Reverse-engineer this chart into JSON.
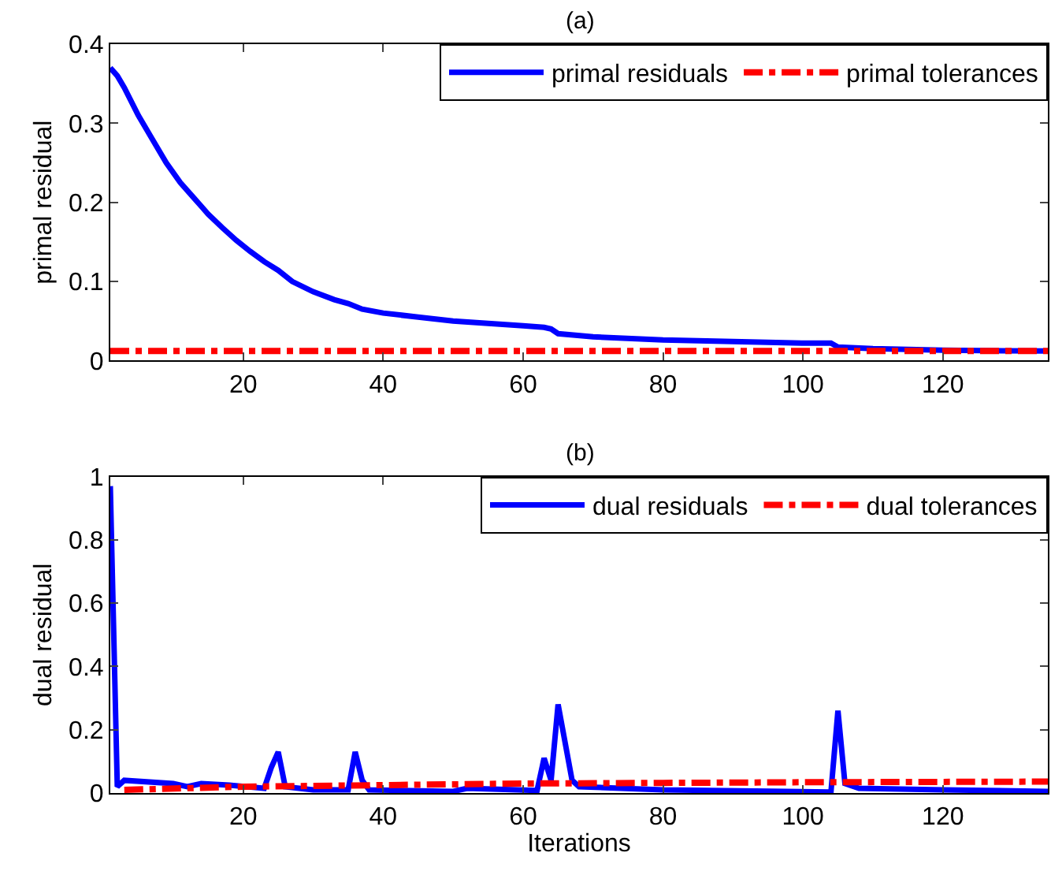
{
  "chart_data": [
    {
      "type": "line",
      "title": "(a)",
      "ylabel": "primal residual",
      "xlim": [
        1,
        135
      ],
      "xticks": [
        20,
        40,
        60,
        80,
        100,
        120
      ],
      "ylim": [
        0,
        0.4
      ],
      "yticks": [
        0,
        0.1,
        0.2,
        0.3,
        0.4
      ],
      "legend": "top right",
      "marker": "none",
      "series": [
        {
          "name": "primal residuals",
          "color": "#0000ff",
          "line_style": "solid",
          "x": [
            1,
            2,
            3,
            5,
            7,
            9,
            11,
            13,
            15,
            17,
            19,
            21,
            23,
            25,
            27,
            30,
            33,
            35,
            37,
            40,
            45,
            50,
            55,
            60,
            63,
            64,
            65,
            70,
            80,
            90,
            100,
            104,
            105,
            110,
            120,
            135
          ],
          "values": [
            0.37,
            0.36,
            0.345,
            0.31,
            0.28,
            0.25,
            0.225,
            0.205,
            0.185,
            0.168,
            0.152,
            0.138,
            0.125,
            0.114,
            0.1,
            0.087,
            0.077,
            0.072,
            0.065,
            0.06,
            0.055,
            0.05,
            0.047,
            0.044,
            0.042,
            0.04,
            0.034,
            0.03,
            0.026,
            0.024,
            0.022,
            0.022,
            0.017,
            0.015,
            0.013,
            0.012
          ]
        },
        {
          "name": "primal tolerances",
          "color": "#ff0000",
          "line_style": "dashdot",
          "x": [
            1,
            135
          ],
          "values": [
            0.012,
            0.012
          ]
        }
      ]
    },
    {
      "type": "line",
      "title": "(b)",
      "xlabel": "Iterations",
      "ylabel": "dual residual",
      "xlim": [
        1,
        135
      ],
      "xticks": [
        20,
        40,
        60,
        80,
        100,
        120
      ],
      "ylim": [
        0,
        1
      ],
      "yticks": [
        0,
        0.2,
        0.4,
        0.6,
        0.8,
        1
      ],
      "legend": "top right",
      "marker": "none",
      "series": [
        {
          "name": "dual residuals",
          "color": "#0000ff",
          "line_style": "solid",
          "x": [
            1,
            2,
            3,
            10,
            12,
            14,
            18,
            23,
            24,
            25,
            26,
            30,
            35,
            36,
            37,
            38,
            50,
            52,
            62,
            63,
            64,
            65,
            67,
            68,
            80,
            104,
            105,
            106,
            108,
            120,
            135
          ],
          "values": [
            0.97,
            0.02,
            0.04,
            0.03,
            0.02,
            0.03,
            0.025,
            0.015,
            0.08,
            0.13,
            0.02,
            0.01,
            0.01,
            0.13,
            0.04,
            0.01,
            0.005,
            0.015,
            0.008,
            0.11,
            0.04,
            0.28,
            0.04,
            0.02,
            0.01,
            0.003,
            0.26,
            0.03,
            0.015,
            0.01,
            0.005
          ]
        },
        {
          "name": "dual tolerances",
          "color": "#ff0000",
          "line_style": "dashdot",
          "x": [
            3,
            20,
            40,
            60,
            80,
            100,
            135
          ],
          "values": [
            0.01,
            0.02,
            0.025,
            0.03,
            0.032,
            0.034,
            0.036
          ]
        }
      ]
    }
  ]
}
